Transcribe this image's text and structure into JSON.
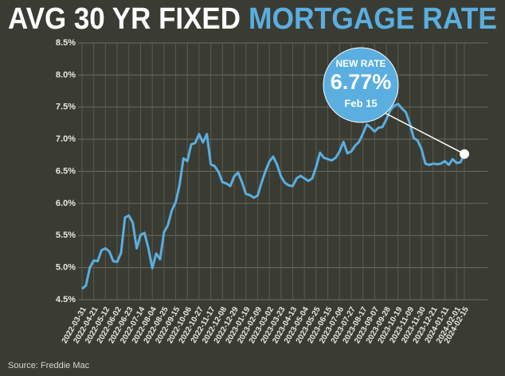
{
  "chart_data": {
    "type": "line",
    "title": "AVG 30 YR FIXED",
    "title_highlight": "MORTGAGE RATE",
    "source": "Source: Freddie Mac",
    "annotation": {
      "heading": "NEW RATE",
      "value_label": "6.77%",
      "date": "Feb 15"
    },
    "color": "#5aaee0",
    "categories": [
      "2022-03-31",
      null,
      null,
      "2022-04-21",
      null,
      null,
      "2022-05-12",
      null,
      null,
      "2022-06-02",
      null,
      null,
      "2022-06-23",
      null,
      null,
      "2022-07-14",
      null,
      null,
      "2022-08-04",
      null,
      null,
      "2022-08-25",
      null,
      null,
      "2022-09-15",
      null,
      null,
      "2022-10-06",
      null,
      null,
      "2022-10-27",
      null,
      null,
      "2022-11-17",
      null,
      null,
      "2022-12-08",
      null,
      null,
      "2022-12-29",
      null,
      null,
      "2023-01-19",
      null,
      null,
      "2023-02-09",
      null,
      null,
      "2023-03-02",
      null,
      null,
      "2023-03-23",
      null,
      null,
      "2023-04-13",
      null,
      null,
      "2023-05-04",
      null,
      null,
      "2023-05-25",
      null,
      null,
      "2023-06-15",
      null,
      null,
      "2023-07-06",
      null,
      null,
      "2023-07-27",
      null,
      null,
      "2023-08-17",
      null,
      null,
      "2023-09-07",
      null,
      null,
      "2023-09-28",
      null,
      null,
      "2023-10-19",
      null,
      null,
      "2023-11-09",
      null,
      null,
      "2023-11-30",
      null,
      null,
      "2023-12-21",
      null,
      null,
      "2024-01-11",
      null,
      null,
      "2024-02-01",
      null,
      "2024-02-15"
    ],
    "values": [
      4.67,
      4.72,
      5.0,
      5.11,
      5.1,
      5.27,
      5.3,
      5.25,
      5.1,
      5.09,
      5.23,
      5.78,
      5.81,
      5.7,
      5.3,
      5.51,
      5.54,
      5.3,
      4.99,
      5.22,
      5.13,
      5.55,
      5.66,
      5.89,
      6.02,
      6.29,
      6.7,
      6.66,
      6.92,
      6.94,
      7.08,
      6.95,
      7.08,
      6.61,
      6.58,
      6.49,
      6.33,
      6.31,
      6.27,
      6.42,
      6.48,
      6.33,
      6.15,
      6.13,
      6.09,
      6.12,
      6.32,
      6.5,
      6.65,
      6.73,
      6.6,
      6.42,
      6.32,
      6.28,
      6.27,
      6.39,
      6.43,
      6.39,
      6.35,
      6.39,
      6.57,
      6.79,
      6.71,
      6.69,
      6.67,
      6.71,
      6.81,
      6.96,
      6.78,
      6.81,
      6.9,
      6.96,
      7.09,
      7.23,
      7.18,
      7.12,
      7.18,
      7.19,
      7.31,
      7.45,
      7.52,
      7.55,
      7.48,
      7.42,
      7.25,
      7.02,
      6.98,
      6.85,
      6.62,
      6.6,
      6.62,
      6.61,
      6.62,
      6.66,
      6.6,
      6.69,
      6.63,
      6.64,
      6.77
    ],
    "ylim": [
      4.5,
      8.5
    ],
    "yticks": [
      {
        "value": 4.5,
        "label": "4.5%"
      },
      {
        "value": 5.0,
        "label": "5.0%"
      },
      {
        "value": 5.5,
        "label": "5.5%"
      },
      {
        "value": 6.0,
        "label": "6.0%"
      },
      {
        "value": 6.5,
        "label": "6.5%"
      },
      {
        "value": 7.0,
        "label": "7.0%"
      },
      {
        "value": 7.5,
        "label": "7.5%"
      },
      {
        "value": 8.0,
        "label": "8.0%"
      },
      {
        "value": 8.5,
        "label": "8.5%"
      }
    ],
    "grid": true
  }
}
